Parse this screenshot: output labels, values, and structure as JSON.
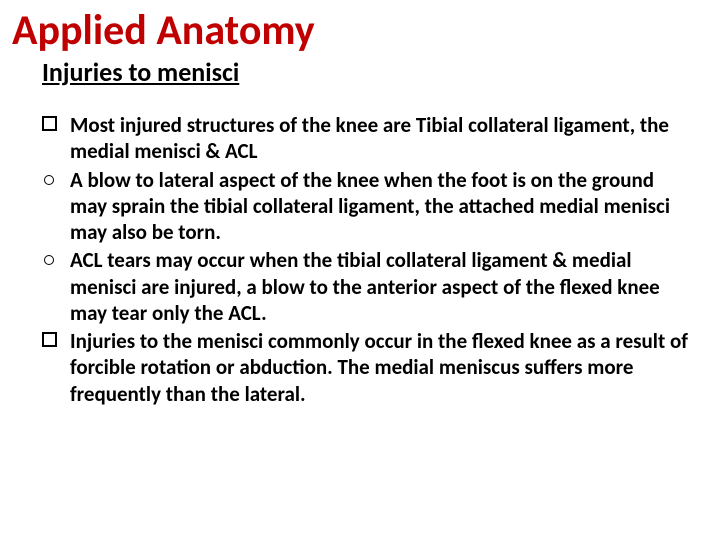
{
  "slide": {
    "title": "Applied Anatomy",
    "subtitle": "Injuries to menisci",
    "items": [
      {
        "bullet_type": "square",
        "text": "Most injured structures of the knee are Tibial collateral ligament, the medial menisci & ACL"
      },
      {
        "bullet_type": "circle",
        "text": " A blow to lateral aspect of the knee when the foot is on the ground may sprain the tibial collateral ligament, the attached medial menisci may also be torn."
      },
      {
        "bullet_type": "circle",
        "text": "ACL tears may occur when the tibial collateral ligament & medial menisci are injured, a blow to the anterior aspect of the flexed knee may tear only the ACL."
      },
      {
        "bullet_type": "square",
        "text": " Injuries to the menisci commonly occur in the flexed knee as a result of forcible rotation or abduction. The medial meniscus suffers more frequently than the lateral."
      }
    ],
    "colors": {
      "title_color": "#c00000",
      "text_color": "#000000",
      "background": "#ffffff"
    },
    "typography": {
      "title_fontsize": 42,
      "subtitle_fontsize": 26,
      "body_fontsize": 21,
      "font_family": "Calibri",
      "font_weight": "bold"
    }
  }
}
